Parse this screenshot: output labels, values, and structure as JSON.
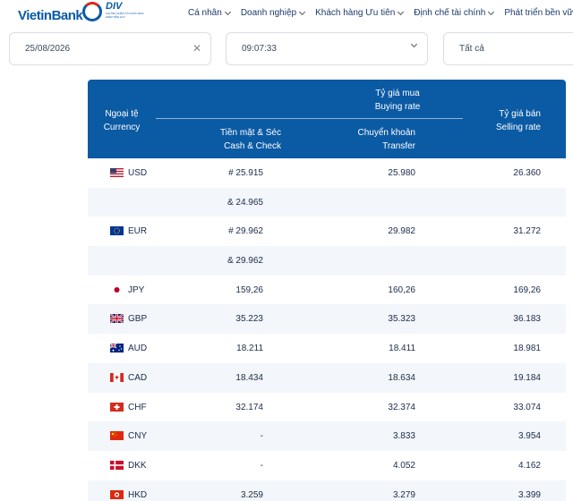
{
  "header": {
    "logo_text": "VietinBank",
    "badge_title": "DIV",
    "badge_sub": "CHỨNG NHẬN TỔ CHỨC BẢO HIỂM TIỀN GỬI",
    "nav": [
      "Cá nhân",
      "Doanh nghiệp",
      "Khách hàng Ưu tiên",
      "Định chế tài chính",
      "Phát triển bền vững"
    ]
  },
  "filters": {
    "date": "25/08/2026",
    "time": "09:07:33",
    "type": "Tất cả"
  },
  "table": {
    "col_currency": [
      "Ngoại tệ",
      "Currency"
    ],
    "col_buy": [
      "Tỷ giá mua",
      "Buying rate"
    ],
    "col_cash": [
      "Tiền mặt & Séc",
      "Cash & Check"
    ],
    "col_transfer": [
      "Chuyển khoản",
      "Transfer"
    ],
    "col_sell": [
      "Tỷ giá bán",
      "Selling rate"
    ],
    "rows": [
      {
        "flag": "us-flag-icon",
        "code": "USD",
        "cash": "# 25.915",
        "transfer": "25.980",
        "sell": "26.360"
      },
      {
        "flag": "",
        "code": "",
        "cash": "& 24.965",
        "transfer": "",
        "sell": ""
      },
      {
        "flag": "eu-flag-icon",
        "code": "EUR",
        "cash": "# 29.962",
        "transfer": "29.982",
        "sell": "31.272"
      },
      {
        "flag": "",
        "code": "",
        "cash": "& 29.962",
        "transfer": "",
        "sell": ""
      },
      {
        "flag": "jp-flag-icon",
        "code": "JPY",
        "cash": "159,26",
        "transfer": "160,26",
        "sell": "169,26"
      },
      {
        "flag": "gb-flag-icon",
        "code": "GBP",
        "cash": "35.223",
        "transfer": "35.323",
        "sell": "36.183"
      },
      {
        "flag": "au-flag-icon",
        "code": "AUD",
        "cash": "18.211",
        "transfer": "18.411",
        "sell": "18.981"
      },
      {
        "flag": "ca-flag-icon",
        "code": "CAD",
        "cash": "18.434",
        "transfer": "18.634",
        "sell": "19.184"
      },
      {
        "flag": "ch-flag-icon",
        "code": "CHF",
        "cash": "32.174",
        "transfer": "32.374",
        "sell": "33.074"
      },
      {
        "flag": "cn-flag-icon",
        "code": "CNY",
        "cash": "-",
        "transfer": "3.833",
        "sell": "3.954"
      },
      {
        "flag": "dk-flag-icon",
        "code": "DKK",
        "cash": "-",
        "transfer": "4.052",
        "sell": "4.162"
      },
      {
        "flag": "hk-flag-icon",
        "code": "HKD",
        "cash": "3.259",
        "transfer": "3.279",
        "sell": "3.399"
      }
    ]
  },
  "colors": {
    "brand": "#0a5aa8",
    "header_bg": "#0b5aa4",
    "row_alt": "#f3f6fa"
  }
}
